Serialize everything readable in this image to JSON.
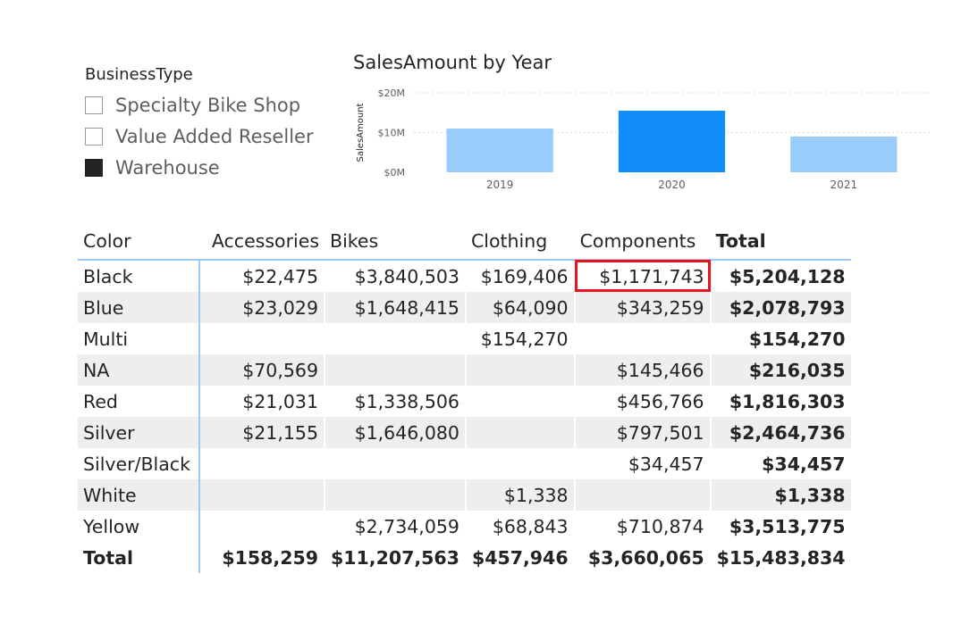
{
  "slicer": {
    "title": "BusinessType",
    "items": [
      {
        "label": "Specialty Bike Shop",
        "checked": false
      },
      {
        "label": "Value Added Reseller",
        "checked": false
      },
      {
        "label": "Warehouse",
        "checked": true
      }
    ]
  },
  "chart_data": {
    "type": "bar",
    "title": "SalesAmount by Year",
    "xlabel": "",
    "ylabel": "SalesAmount",
    "categories": [
      "2019",
      "2020",
      "2021"
    ],
    "values": [
      11,
      15.5,
      9
    ],
    "ylim": [
      0,
      20
    ],
    "y_ticks": [
      "$0M",
      "$10M",
      "$20M"
    ],
    "selected_index": 1,
    "colors": {
      "bar": "#99cbfb",
      "selected": "#118df9",
      "grid": "#d9d9d9"
    },
    "grid": true
  },
  "matrix": {
    "headers": [
      "Color",
      "Accessories",
      "Bikes",
      "Clothing",
      "Components",
      "Total"
    ],
    "rows": [
      {
        "color": "Black",
        "cells": [
          "$22,475",
          "$3,840,503",
          "$169,406",
          "$1,171,743"
        ],
        "total": "$5,204,128"
      },
      {
        "color": "Blue",
        "cells": [
          "$23,029",
          "$1,648,415",
          "$64,090",
          "$343,259"
        ],
        "total": "$2,078,793"
      },
      {
        "color": "Multi",
        "cells": [
          "",
          "",
          "$154,270",
          ""
        ],
        "total": "$154,270"
      },
      {
        "color": "NA",
        "cells": [
          "$70,569",
          "",
          "",
          "$145,466"
        ],
        "total": "$216,035"
      },
      {
        "color": "Red",
        "cells": [
          "$21,031",
          "$1,338,506",
          "",
          "$456,766"
        ],
        "total": "$1,816,303"
      },
      {
        "color": "Silver",
        "cells": [
          "$21,155",
          "$1,646,080",
          "",
          "$797,501"
        ],
        "total": "$2,464,736"
      },
      {
        "color": "Silver/Black",
        "cells": [
          "",
          "",
          "",
          "$34,457"
        ],
        "total": "$34,457"
      },
      {
        "color": "White",
        "cells": [
          "",
          "",
          "$1,338",
          ""
        ],
        "total": "$1,338"
      },
      {
        "color": "Yellow",
        "cells": [
          "",
          "$2,734,059",
          "$68,843",
          "$710,874"
        ],
        "total": "$3,513,775"
      }
    ],
    "grand_total": {
      "label": "Total",
      "cells": [
        "$158,259",
        "$11,207,563",
        "$457,946",
        "$3,660,065"
      ],
      "total": "$15,483,834"
    },
    "highlight": {
      "row": 0,
      "col": 3,
      "color": "#e8131c"
    }
  }
}
